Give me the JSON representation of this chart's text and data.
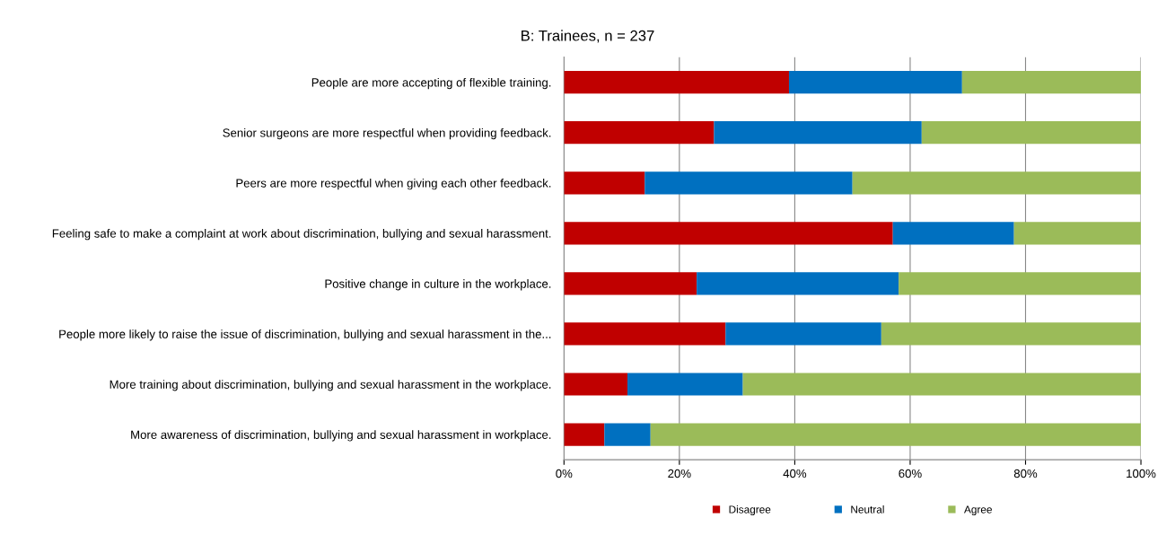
{
  "chart_data": {
    "type": "bar",
    "orientation": "horizontal",
    "stacked": true,
    "title": "B: Trainees, n = 237",
    "categories": [
      "People are more accepting of flexible training.",
      "Senior surgeons are more respectful when providing feedback.",
      "Peers are more respectful when giving each other feedback.",
      "Feeling safe to make a complaint at work about discrimination, bullying and sexual harassment.",
      "Positive change in culture in the workplace.",
      "People more likely to raise the issue of discrimination, bullying and sexual harassment in the...",
      "More training about discrimination, bullying and sexual harassment in the workplace.",
      "More awareness of discrimination, bullying and sexual harassment in workplace."
    ],
    "series": [
      {
        "name": "Disagree",
        "color": "#c00000",
        "values": [
          39,
          26,
          14,
          57,
          23,
          28,
          11,
          7
        ]
      },
      {
        "name": "Neutral",
        "color": "#0070c0",
        "values": [
          30,
          36,
          36,
          21,
          35,
          27,
          20,
          8
        ]
      },
      {
        "name": "Agree",
        "color": "#9bbb59",
        "values": [
          31,
          38,
          50,
          22,
          42,
          45,
          69,
          85
        ]
      }
    ],
    "xlim": [
      0,
      100
    ],
    "xticks": [
      {
        "value": 0,
        "label": "0%"
      },
      {
        "value": 20,
        "label": "20%"
      },
      {
        "value": 40,
        "label": "40%"
      },
      {
        "value": 60,
        "label": "60%"
      },
      {
        "value": 80,
        "label": "80%"
      },
      {
        "value": 100,
        "label": "100%"
      }
    ],
    "grid": "x",
    "legend": "bottom"
  }
}
